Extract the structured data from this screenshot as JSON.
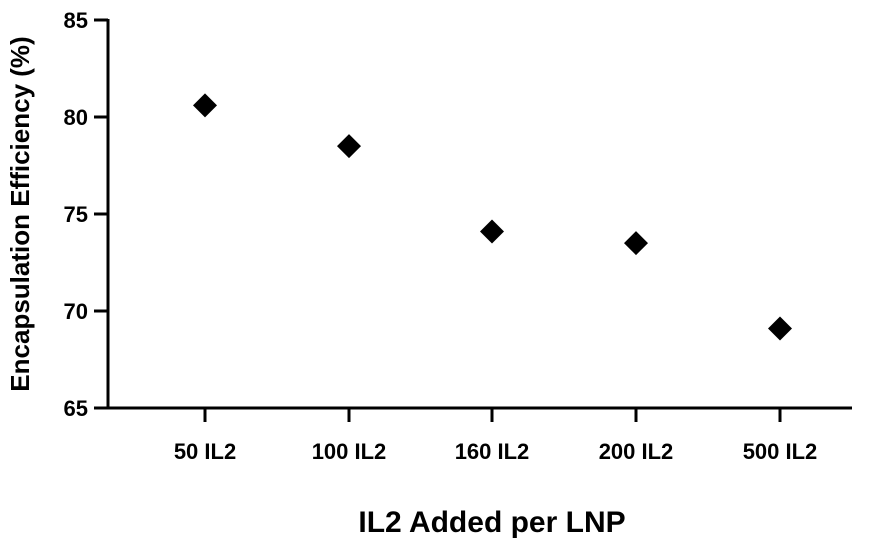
{
  "chart_data": {
    "type": "scatter",
    "title": "",
    "xlabel": "IL2 Added per LNP",
    "ylabel": "Encapsulation Efficiency (%)",
    "categories": [
      "50 IL2",
      "100 IL2",
      "160 IL2",
      "200 IL2",
      "500 IL2"
    ],
    "values": [
      80.6,
      78.5,
      74.1,
      73.5,
      69.1
    ],
    "ylim": [
      65,
      85
    ],
    "yticks": [
      "65",
      "70",
      "75",
      "80",
      "85"
    ],
    "marker": "diamond",
    "grid": false,
    "legend": "none"
  }
}
